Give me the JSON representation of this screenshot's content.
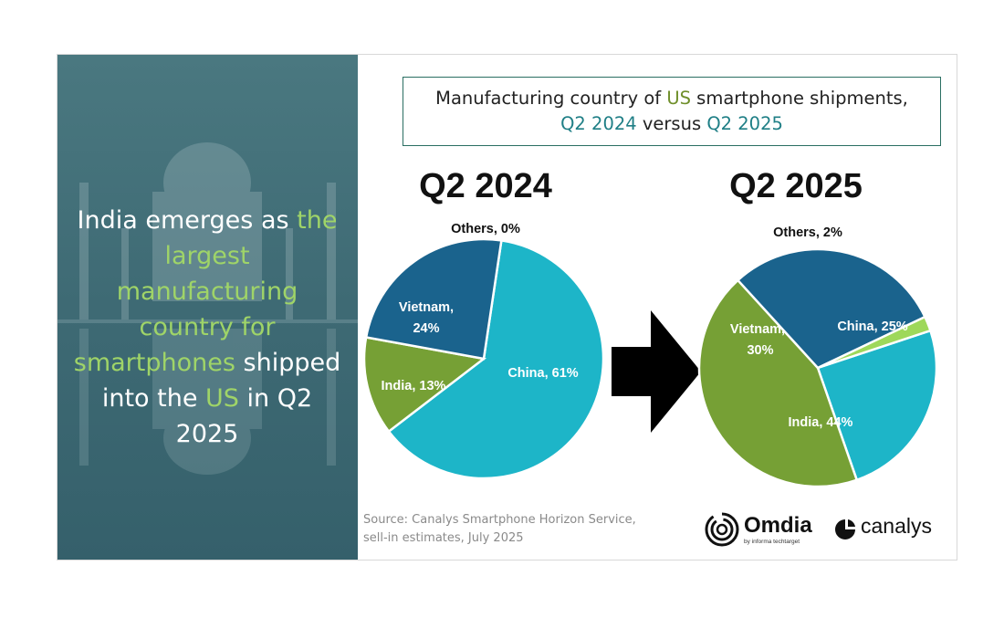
{
  "headline": {
    "part1": "India emerges as ",
    "highlight1": "the largest manufacturing country for smartphones",
    "part2": " shipped into the ",
    "highlight2": "US",
    "part3": " in Q2 2025"
  },
  "title": {
    "line1_a": "Manufacturing country of ",
    "line1_us": "US",
    "line1_b": " smartphone shipments,",
    "line2_q1": "Q2 2024",
    "line2_mid": " versus ",
    "line2_q2": "Q2 2025"
  },
  "source": {
    "line1": "Source: Canalys Smartphone Horizon Service,",
    "line2": "sell-in estimates, July 2025"
  },
  "logos": {
    "omdia": "Omdia",
    "omdia_sub": "by informa techtarget",
    "canalys": "canalys"
  },
  "colors": {
    "china": "#1db5c8",
    "india": "#76a035",
    "vietnam": "#1a638d",
    "others": "#9ed85a",
    "panel": "#3f6f79"
  },
  "chart_data": [
    {
      "type": "pie",
      "title": "Q2 2024",
      "categories": [
        "China",
        "India",
        "Vietnam",
        "Others"
      ],
      "values": [
        61,
        13,
        24,
        0
      ],
      "labels": [
        "China, 61%",
        "India, 13%",
        "Vietnam,",
        "24%",
        "Others, 0%"
      ]
    },
    {
      "type": "pie",
      "title": "Q2 2025",
      "categories": [
        "China",
        "India",
        "Vietnam",
        "Others"
      ],
      "values": [
        25,
        44,
        30,
        2
      ],
      "labels": [
        "China, 25%",
        "India, 44%",
        "Vietnam,",
        "30%",
        "Others, 2%"
      ]
    }
  ]
}
